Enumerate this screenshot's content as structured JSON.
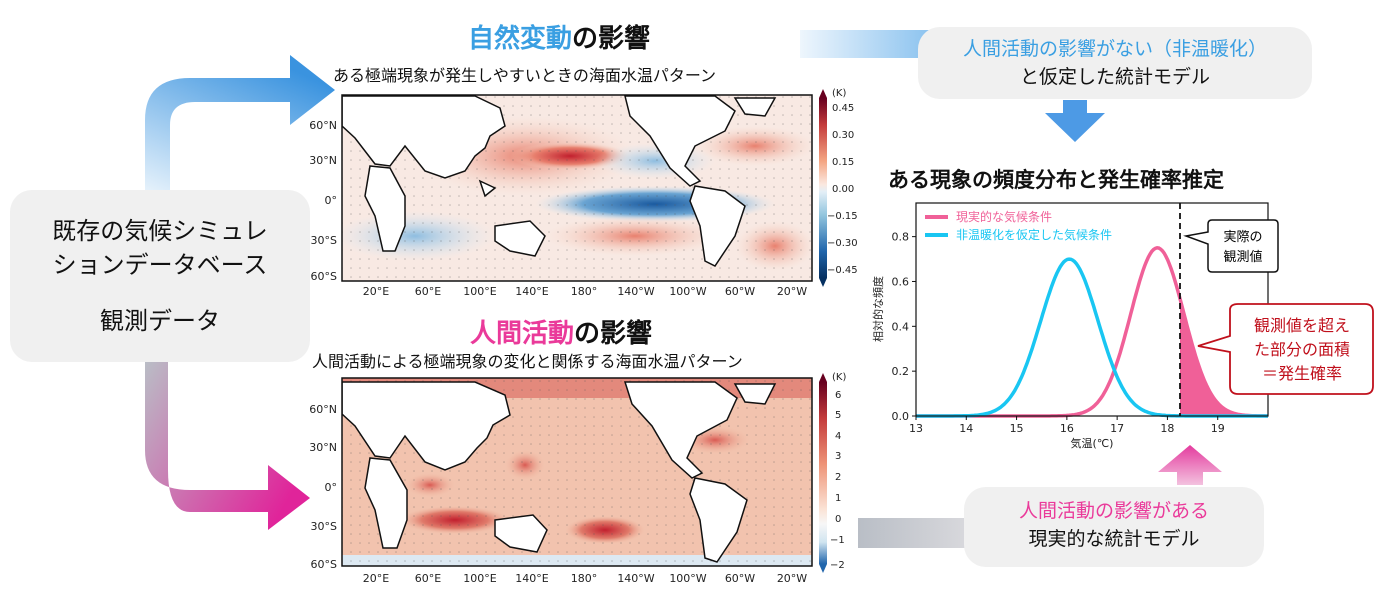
{
  "left_box": {
    "line1": "既存の気候シミュレ",
    "line2": "ションデータベース",
    "line3": "観測データ"
  },
  "natural": {
    "title_highlight": "自然変動",
    "title_rest": "の影響",
    "subtitle": "ある極端現象が発生しやすいときの海面水温パターン",
    "colorbar_unit": "(K)",
    "colorbar_ticks": [
      "0.45",
      "0.30",
      "0.15",
      "0.00",
      "−0.15",
      "−0.30",
      "−0.45"
    ],
    "lat_ticks": [
      "60°N",
      "30°N",
      "0°",
      "30°S",
      "60°S"
    ],
    "lon_ticks": [
      "20°E",
      "60°E",
      "100°E",
      "140°E",
      "180°",
      "140°W",
      "100°W",
      "60°W",
      "20°W"
    ]
  },
  "human": {
    "title_highlight": "人間活動",
    "title_rest": "の影響",
    "subtitle": "人間活動による極端現象の変化と関係する海面水温パターン",
    "colorbar_unit": "(K)",
    "colorbar_ticks": [
      "6",
      "5",
      "4",
      "3",
      "2",
      "1",
      "0",
      "−1",
      "−2"
    ],
    "lat_ticks": [
      "60°N",
      "30°N",
      "0°",
      "30°S",
      "60°S"
    ],
    "lon_ticks": [
      "20°E",
      "60°E",
      "100°E",
      "140°E",
      "180°",
      "140°W",
      "100°W",
      "60°W",
      "20°W"
    ]
  },
  "top_right_box": {
    "line1": "人間活動の影響がない（非温暖化）",
    "line2": "と仮定した統計モデル"
  },
  "bottom_right_box": {
    "line1": "人間活動の影響がある",
    "line2": "現実的な統計モデル"
  },
  "chart_title": "ある現象の頻度分布と発生確率推定",
  "observed_callout": {
    "line1": "実際の",
    "line2": "観測値"
  },
  "exceed_callout": {
    "line1": "観測値を超え",
    "line2": "た部分の面積",
    "line3": "＝発生確率"
  },
  "colors": {
    "blue": "#3a9fe2",
    "pink": "#ea3a9a",
    "cyan": "#19c6f2",
    "callout_red": "#c0101c"
  },
  "chart_data": {
    "type": "line",
    "xlabel": "気温(℃)",
    "ylabel": "相対的な頻度",
    "xlim": [
      13,
      20
    ],
    "ylim": [
      0,
      0.95
    ],
    "xticks": [
      "13",
      "14",
      "15",
      "16",
      "17",
      "18",
      "19"
    ],
    "yticks": [
      "0.0",
      "0.2",
      "0.4",
      "0.6",
      "0.8"
    ],
    "observed_value": 18.25,
    "series": [
      {
        "name": "現実的な気候条件",
        "color": "#f06098",
        "mean": 17.8,
        "sd": 0.53,
        "peak": 0.75
      },
      {
        "name": "非温暖化を仮定した気候条件",
        "color": "#19c6f2",
        "mean": 16.05,
        "sd": 0.57,
        "peak": 0.7
      }
    ]
  }
}
